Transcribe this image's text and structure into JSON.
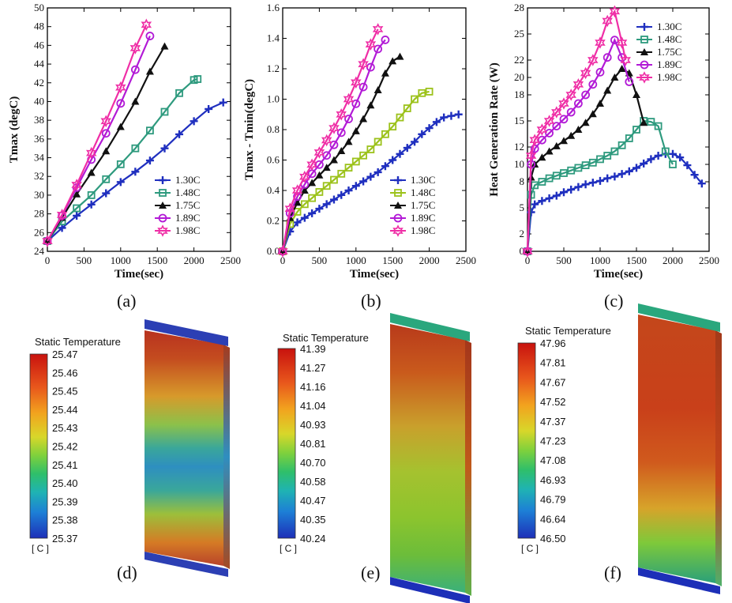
{
  "panel_labels": [
    "(a)",
    "(b)",
    "(c)",
    "(d)",
    "(e)",
    "(f)"
  ],
  "series_colors": {
    "1.30C": "#1f2fbf",
    "1.48C_a": "#2e9a7e",
    "1.48C_b": "#9cc21b",
    "1.48C_c": "#2e9a7e",
    "1.75C": "#111111",
    "1.89C": "#b21ad6",
    "1.98C": "#ef2ea6"
  },
  "chart_data": [
    {
      "type": "line",
      "xlabel": "Time(sec)",
      "ylabel": "Tmax (degC)",
      "xlim": [
        0,
        2500
      ],
      "ylim": [
        24,
        50
      ],
      "xticks": [
        0,
        500,
        1000,
        1500,
        2000,
        2500
      ],
      "yticks": [
        24,
        26,
        28,
        30,
        32,
        34,
        36,
        38,
        40,
        42,
        44,
        46,
        48,
        50
      ],
      "legend": "bottom-right",
      "series": [
        {
          "name": "1.30C",
          "marker": "plus",
          "color": "#1f2fbf",
          "x": [
            0,
            200,
            400,
            600,
            800,
            1000,
            1200,
            1400,
            1600,
            1800,
            2000,
            2200,
            2400
          ],
          "y": [
            25.1,
            26.5,
            27.8,
            29.0,
            30.2,
            31.4,
            32.5,
            33.7,
            35.0,
            36.5,
            37.9,
            39.2,
            39.9
          ]
        },
        {
          "name": "1.48C",
          "marker": "square",
          "color": "#2e9a7e",
          "x": [
            0,
            200,
            400,
            600,
            800,
            1000,
            1200,
            1400,
            1600,
            1800,
            2000,
            2050
          ],
          "y": [
            25.1,
            27.2,
            28.6,
            30.0,
            31.7,
            33.3,
            35.0,
            36.9,
            38.9,
            40.9,
            42.3,
            42.4
          ]
        },
        {
          "name": "1.75C",
          "marker": "triangle",
          "color": "#111111",
          "x": [
            0,
            200,
            400,
            600,
            800,
            1000,
            1200,
            1400,
            1600
          ],
          "y": [
            25.1,
            27.6,
            30.1,
            32.4,
            34.7,
            37.3,
            40.0,
            43.2,
            45.9
          ]
        },
        {
          "name": "1.89C",
          "marker": "circle",
          "color": "#b21ad6",
          "x": [
            0,
            200,
            400,
            600,
            800,
            1000,
            1200,
            1400
          ],
          "y": [
            25.1,
            27.8,
            30.8,
            33.8,
            36.6,
            39.8,
            43.4,
            47.0
          ]
        },
        {
          "name": "1.98C",
          "marker": "star",
          "color": "#ef2ea6",
          "x": [
            0,
            200,
            400,
            600,
            800,
            1000,
            1200,
            1350
          ],
          "y": [
            25.1,
            27.9,
            31.1,
            34.5,
            37.9,
            41.5,
            45.7,
            48.2
          ]
        }
      ]
    },
    {
      "type": "line",
      "xlabel": "Time(sec)",
      "ylabel": "Tmax - Tmin(degC)",
      "xlim": [
        0,
        2500
      ],
      "ylim": [
        0,
        1.6
      ],
      "xticks": [
        0,
        500,
        1000,
        1500,
        2000,
        2500
      ],
      "yticks": [
        0.0,
        0.2,
        0.4,
        0.6,
        0.8,
        1.0,
        1.2,
        1.4,
        1.6
      ],
      "legend": "bottom-right",
      "series": [
        {
          "name": "1.30C",
          "marker": "plus",
          "color": "#1f2fbf",
          "x": [
            0,
            100,
            200,
            300,
            400,
            500,
            600,
            700,
            800,
            900,
            1000,
            1100,
            1200,
            1300,
            1400,
            1500,
            1600,
            1700,
            1800,
            1900,
            2000,
            2100,
            2200,
            2300,
            2400
          ],
          "y": [
            0,
            0.13,
            0.19,
            0.22,
            0.25,
            0.28,
            0.31,
            0.34,
            0.37,
            0.4,
            0.43,
            0.46,
            0.49,
            0.52,
            0.56,
            0.6,
            0.64,
            0.68,
            0.72,
            0.77,
            0.81,
            0.85,
            0.88,
            0.89,
            0.9
          ]
        },
        {
          "name": "1.48C",
          "marker": "square",
          "color": "#9cc21b",
          "x": [
            0,
            100,
            200,
            300,
            400,
            500,
            600,
            700,
            800,
            900,
            1000,
            1100,
            1200,
            1300,
            1400,
            1500,
            1600,
            1700,
            1800,
            1900,
            2000
          ],
          "y": [
            0,
            0.18,
            0.26,
            0.31,
            0.35,
            0.39,
            0.43,
            0.47,
            0.51,
            0.55,
            0.59,
            0.63,
            0.67,
            0.72,
            0.77,
            0.82,
            0.88,
            0.94,
            1.0,
            1.04,
            1.05
          ]
        },
        {
          "name": "1.75C",
          "marker": "triangle",
          "color": "#111111",
          "x": [
            0,
            100,
            200,
            300,
            400,
            500,
            600,
            700,
            800,
            900,
            1000,
            1100,
            1200,
            1300,
            1400,
            1500,
            1600
          ],
          "y": [
            0,
            0.22,
            0.32,
            0.4,
            0.45,
            0.5,
            0.55,
            0.6,
            0.66,
            0.72,
            0.79,
            0.87,
            0.96,
            1.06,
            1.17,
            1.25,
            1.28
          ]
        },
        {
          "name": "1.89C",
          "marker": "circle",
          "color": "#b21ad6",
          "x": [
            0,
            100,
            200,
            300,
            400,
            500,
            600,
            700,
            800,
            900,
            1000,
            1100,
            1200,
            1300,
            1400
          ],
          "y": [
            0,
            0.25,
            0.36,
            0.44,
            0.51,
            0.57,
            0.63,
            0.7,
            0.78,
            0.87,
            0.97,
            1.08,
            1.21,
            1.33,
            1.39
          ]
        },
        {
          "name": "1.98C",
          "marker": "star",
          "color": "#ef2ea6",
          "x": [
            0,
            100,
            200,
            300,
            400,
            500,
            600,
            700,
            800,
            900,
            1000,
            1100,
            1200,
            1300
          ],
          "y": [
            0,
            0.28,
            0.4,
            0.49,
            0.57,
            0.65,
            0.73,
            0.81,
            0.9,
            1.0,
            1.11,
            1.23,
            1.36,
            1.46
          ]
        }
      ]
    },
    {
      "type": "line",
      "xlabel": "Time(sec)",
      "ylabel": "Heat Generation Rate (W)",
      "xlim": [
        0,
        2500
      ],
      "ylim": [
        0,
        28
      ],
      "xticks": [
        0,
        500,
        1000,
        1500,
        2000,
        2500
      ],
      "yticks": [
        0,
        2,
        5,
        8,
        10,
        12,
        15,
        18,
        20,
        22,
        25,
        28
      ],
      "legend": "top-right",
      "series": [
        {
          "name": "1.30C",
          "marker": "plus",
          "color": "#1f2fbf",
          "x": [
            0,
            50,
            100,
            200,
            300,
            400,
            500,
            600,
            700,
            800,
            900,
            1000,
            1100,
            1200,
            1300,
            1400,
            1500,
            1600,
            1700,
            1800,
            1900,
            2000,
            2100,
            2200,
            2300,
            2400
          ],
          "y": [
            0,
            4.5,
            5.4,
            5.8,
            6.1,
            6.4,
            6.8,
            7.1,
            7.4,
            7.7,
            7.9,
            8.1,
            8.4,
            8.6,
            8.9,
            9.2,
            9.6,
            10.1,
            10.6,
            11.0,
            11.2,
            11.2,
            10.8,
            9.9,
            8.8,
            7.8
          ]
        },
        {
          "name": "1.48C",
          "marker": "square",
          "color": "#2e9a7e",
          "x": [
            0,
            50,
            100,
            200,
            300,
            400,
            500,
            600,
            700,
            800,
            900,
            1000,
            1100,
            1200,
            1300,
            1400,
            1500,
            1600,
            1700,
            1800,
            1900,
            2000
          ],
          "y": [
            0,
            6.5,
            7.6,
            8.0,
            8.4,
            8.7,
            9.0,
            9.3,
            9.6,
            9.9,
            10.2,
            10.6,
            11.0,
            11.5,
            12.2,
            13.0,
            14.0,
            15.0,
            14.9,
            14.4,
            11.5,
            10.0
          ]
        },
        {
          "name": "1.75C",
          "marker": "triangle",
          "color": "#111111",
          "x": [
            0,
            50,
            100,
            200,
            300,
            400,
            500,
            600,
            700,
            800,
            900,
            1000,
            1100,
            1200,
            1300,
            1400,
            1500,
            1600
          ],
          "y": [
            0,
            8.5,
            10.0,
            10.8,
            11.5,
            12.1,
            12.7,
            13.3,
            14.0,
            14.8,
            15.8,
            17.0,
            18.5,
            20.0,
            21.0,
            20.5,
            18.0,
            14.8
          ]
        },
        {
          "name": "1.89C",
          "marker": "circle",
          "color": "#b21ad6",
          "x": [
            0,
            50,
            100,
            200,
            300,
            400,
            500,
            600,
            700,
            800,
            900,
            1000,
            1100,
            1200,
            1300,
            1400
          ],
          "y": [
            0,
            10.0,
            11.8,
            12.8,
            13.6,
            14.4,
            15.2,
            16.0,
            17.0,
            18.0,
            19.2,
            20.6,
            22.3,
            24.3,
            22.3,
            19.5
          ]
        },
        {
          "name": "1.98C",
          "marker": "star",
          "color": "#ef2ea6",
          "x": [
            0,
            50,
            100,
            200,
            300,
            400,
            500,
            600,
            700,
            800,
            900,
            1000,
            1100,
            1200,
            1300,
            1350
          ],
          "y": [
            0,
            11.0,
            12.8,
            14.0,
            15.0,
            16.0,
            17.0,
            18.0,
            19.2,
            20.5,
            22.0,
            24.0,
            26.5,
            27.6,
            24.0,
            22.0
          ]
        }
      ]
    }
  ],
  "contours": [
    {
      "title": "Static Temperature",
      "unit": "[ C ]",
      "labels": [
        "25.47",
        "25.46",
        "25.45",
        "25.44",
        "25.43",
        "25.42",
        "25.41",
        "25.40",
        "25.39",
        "25.38",
        "25.37"
      ]
    },
    {
      "title": "Static Temperature",
      "unit": "[ C ]",
      "labels": [
        "41.39",
        "41.27",
        "41.16",
        "41.04",
        "40.93",
        "40.81",
        "40.70",
        "40.58",
        "40.47",
        "40.35",
        "40.24"
      ]
    },
    {
      "title": "Static Temperature",
      "unit": "[ C ]",
      "labels": [
        "47.96",
        "47.81",
        "47.67",
        "47.52",
        "47.37",
        "47.23",
        "47.08",
        "46.93",
        "46.79",
        "46.64",
        "46.50"
      ]
    }
  ]
}
